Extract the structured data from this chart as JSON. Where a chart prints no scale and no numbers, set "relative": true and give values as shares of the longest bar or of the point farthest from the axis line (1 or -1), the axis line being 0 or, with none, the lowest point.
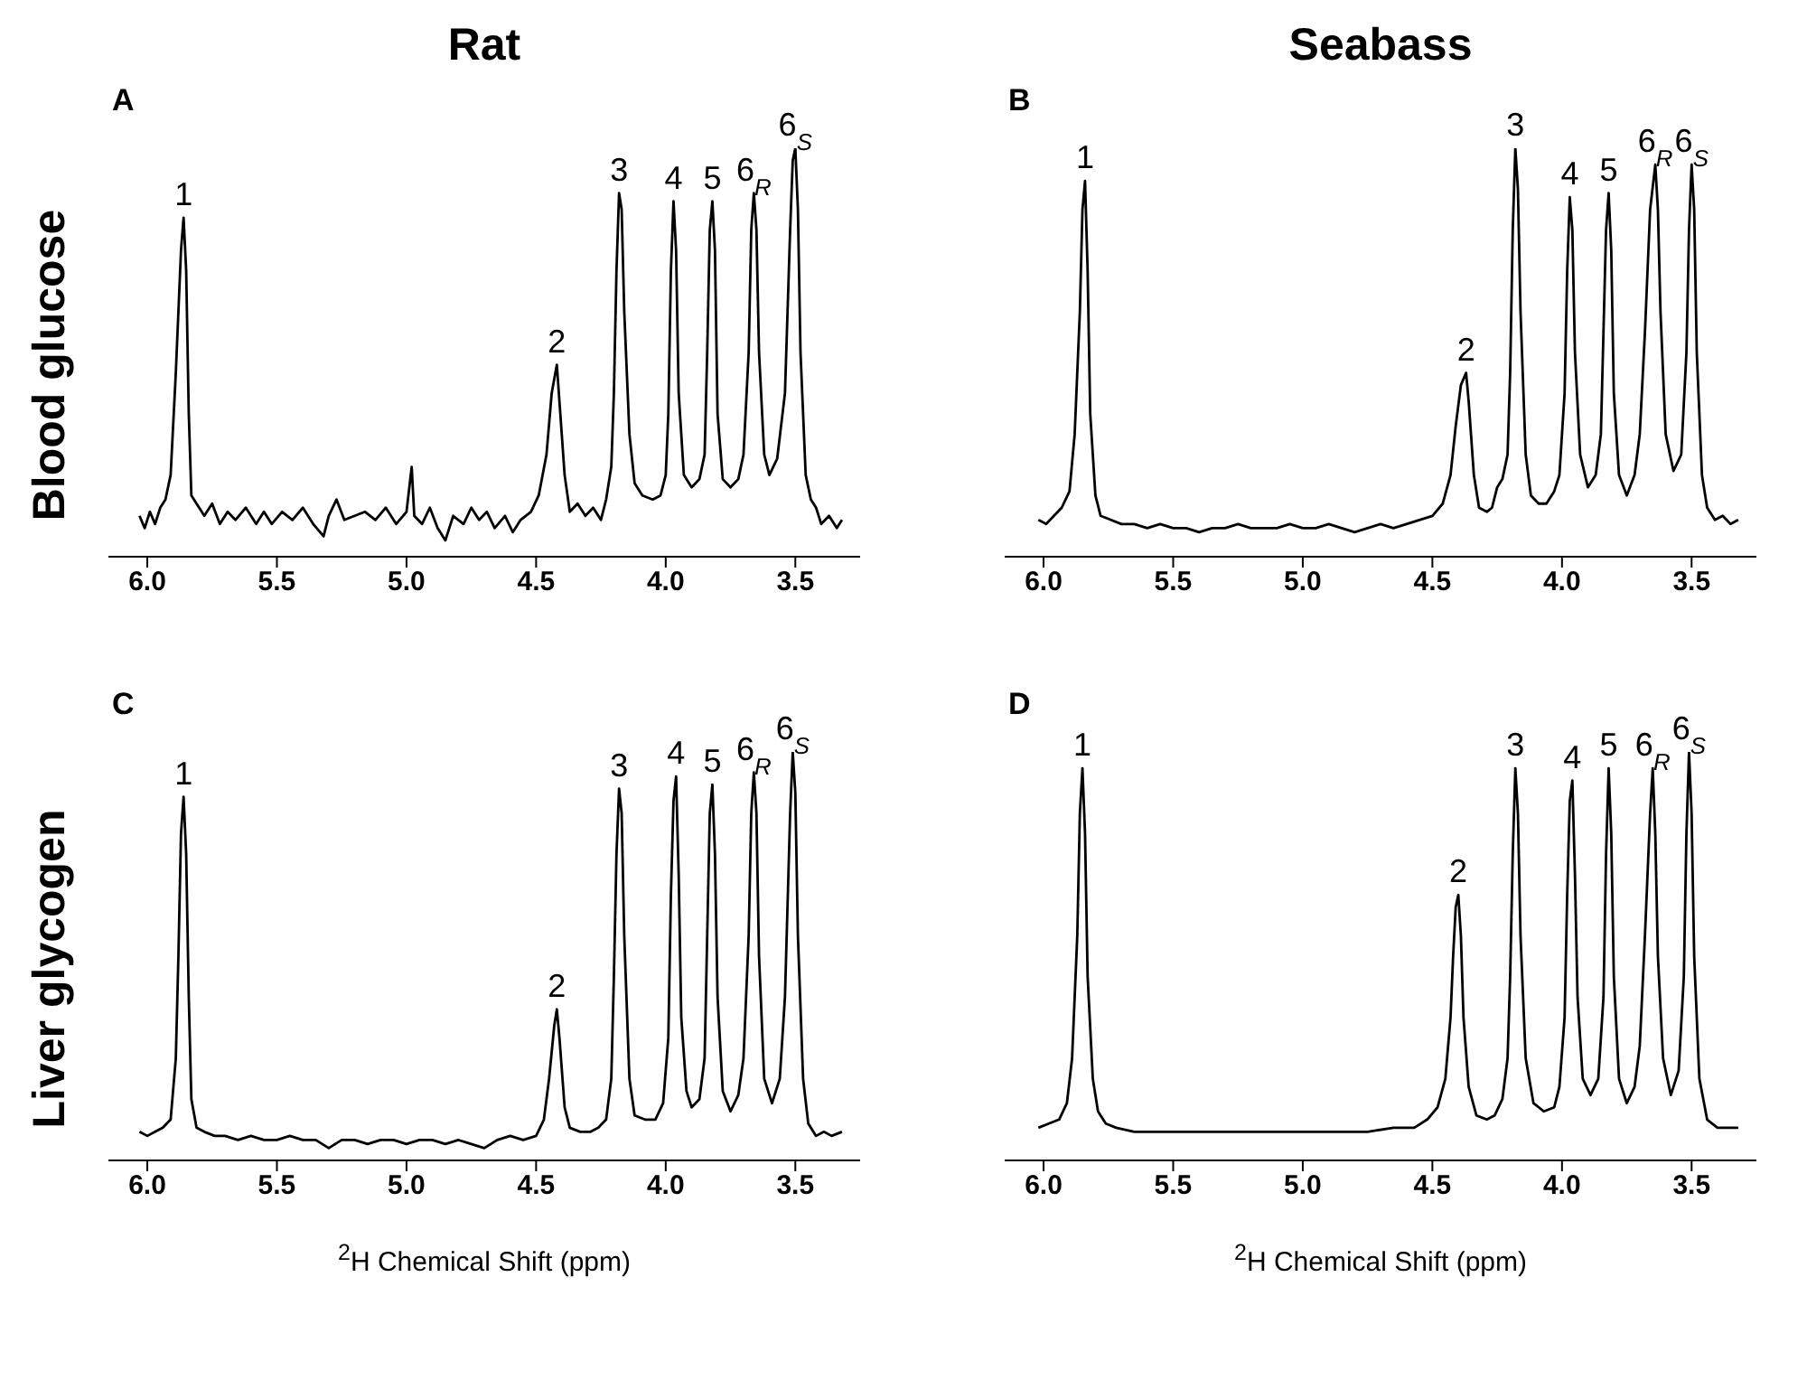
{
  "chart_data": [
    {
      "type": "line",
      "title": "Rat",
      "subtitle": "A",
      "ylabel": "Blood glucose",
      "relative": true,
      "color": "#000000",
      "xlim": [
        6.15,
        3.25
      ],
      "xticks": [
        {
          "value": 6,
          "label": "6.0"
        },
        {
          "value": 5.5,
          "label": "5.5"
        },
        {
          "value": 5,
          "label": "5.0"
        },
        {
          "value": 4.5,
          "label": "4.5"
        },
        {
          "value": 4,
          "label": "4.0"
        },
        {
          "value": 3.5,
          "label": "3.5"
        }
      ],
      "x": [
        6.03,
        6.01,
        5.99,
        5.97,
        5.95,
        5.93,
        5.91,
        5.89,
        5.87,
        5.86,
        5.85,
        5.84,
        5.83,
        5.81,
        5.78,
        5.75,
        5.72,
        5.69,
        5.66,
        5.62,
        5.58,
        5.55,
        5.52,
        5.48,
        5.44,
        5.4,
        5.36,
        5.32,
        5.3,
        5.27,
        5.24,
        5.2,
        5.16,
        5.12,
        5.08,
        5.04,
        5.0,
        4.98,
        4.97,
        4.94,
        4.91,
        4.88,
        4.85,
        4.82,
        4.78,
        4.75,
        4.72,
        4.69,
        4.66,
        4.62,
        4.59,
        4.56,
        4.52,
        4.49,
        4.46,
        4.44,
        4.42,
        4.41,
        4.39,
        4.37,
        4.34,
        4.31,
        4.28,
        4.25,
        4.23,
        4.21,
        4.2,
        4.19,
        4.18,
        4.17,
        4.16,
        4.14,
        4.12,
        4.09,
        4.05,
        4.02,
        4.0,
        3.99,
        3.98,
        3.97,
        3.96,
        3.95,
        3.93,
        3.9,
        3.87,
        3.85,
        3.84,
        3.83,
        3.82,
        3.81,
        3.8,
        3.78,
        3.75,
        3.72,
        3.7,
        3.68,
        3.67,
        3.66,
        3.65,
        3.64,
        3.62,
        3.6,
        3.57,
        3.54,
        3.52,
        3.51,
        3.5,
        3.49,
        3.48,
        3.46,
        3.44,
        3.42,
        3.4,
        3.37,
        3.34,
        3.32
      ],
      "values": [
        0.1,
        0.07,
        0.11,
        0.08,
        0.12,
        0.14,
        0.2,
        0.45,
        0.75,
        0.83,
        0.7,
        0.35,
        0.15,
        0.13,
        0.1,
        0.13,
        0.08,
        0.11,
        0.09,
        0.12,
        0.08,
        0.11,
        0.08,
        0.11,
        0.09,
        0.12,
        0.08,
        0.05,
        0.1,
        0.14,
        0.09,
        0.1,
        0.11,
        0.09,
        0.12,
        0.08,
        0.11,
        0.22,
        0.1,
        0.08,
        0.12,
        0.07,
        0.04,
        0.1,
        0.08,
        0.12,
        0.09,
        0.11,
        0.07,
        0.1,
        0.06,
        0.09,
        0.11,
        0.15,
        0.25,
        0.4,
        0.47,
        0.38,
        0.2,
        0.11,
        0.13,
        0.1,
        0.12,
        0.09,
        0.14,
        0.22,
        0.4,
        0.7,
        0.89,
        0.85,
        0.6,
        0.3,
        0.18,
        0.15,
        0.14,
        0.15,
        0.2,
        0.35,
        0.7,
        0.87,
        0.75,
        0.4,
        0.2,
        0.17,
        0.19,
        0.25,
        0.5,
        0.8,
        0.87,
        0.75,
        0.35,
        0.19,
        0.17,
        0.19,
        0.25,
        0.5,
        0.8,
        0.89,
        0.8,
        0.5,
        0.25,
        0.2,
        0.24,
        0.4,
        0.8,
        0.97,
        1.0,
        0.85,
        0.5,
        0.2,
        0.14,
        0.12,
        0.08,
        0.1,
        0.07,
        0.09
      ],
      "annotations": [
        {
          "text": "1",
          "x": 5.86,
          "y": 0.83
        },
        {
          "text": "2",
          "x": 4.42,
          "y": 0.47
        },
        {
          "text": "3",
          "x": 4.18,
          "y": 0.89
        },
        {
          "text": "4",
          "x": 3.97,
          "y": 0.87
        },
        {
          "text": "5",
          "x": 3.82,
          "y": 0.87
        },
        {
          "text": "6$_{R}$",
          "x": 3.66,
          "y": 0.89
        },
        {
          "text": "6$_{S}$",
          "x": 3.5,
          "y": 1.0
        }
      ]
    },
    {
      "type": "line",
      "title": "Seabass",
      "subtitle": "B",
      "relative": true,
      "color": "#000000",
      "xlim": [
        6.15,
        3.25
      ],
      "xticks": [
        {
          "value": 6,
          "label": "6.0"
        },
        {
          "value": 5.5,
          "label": "5.5"
        },
        {
          "value": 5,
          "label": "5.0"
        },
        {
          "value": 4.5,
          "label": "4.5"
        },
        {
          "value": 4,
          "label": "4.0"
        },
        {
          "value": 3.5,
          "label": "3.5"
        }
      ],
      "x": [
        6.02,
        5.99,
        5.96,
        5.93,
        5.9,
        5.88,
        5.86,
        5.85,
        5.84,
        5.83,
        5.82,
        5.8,
        5.78,
        5.74,
        5.7,
        5.65,
        5.6,
        5.55,
        5.5,
        5.45,
        5.4,
        5.35,
        5.3,
        5.25,
        5.2,
        5.15,
        5.1,
        5.05,
        5.0,
        4.95,
        4.9,
        4.85,
        4.8,
        4.75,
        4.7,
        4.65,
        4.6,
        4.55,
        4.5,
        4.46,
        4.43,
        4.41,
        4.39,
        4.37,
        4.36,
        4.34,
        4.32,
        4.29,
        4.27,
        4.25,
        4.23,
        4.21,
        4.2,
        4.19,
        4.18,
        4.17,
        4.16,
        4.14,
        4.12,
        4.09,
        4.06,
        4.03,
        4.01,
        3.99,
        3.98,
        3.97,
        3.96,
        3.95,
        3.93,
        3.9,
        3.87,
        3.85,
        3.84,
        3.83,
        3.82,
        3.81,
        3.8,
        3.78,
        3.75,
        3.72,
        3.7,
        3.68,
        3.66,
        3.64,
        3.63,
        3.62,
        3.6,
        3.57,
        3.54,
        3.52,
        3.51,
        3.5,
        3.49,
        3.48,
        3.46,
        3.44,
        3.41,
        3.38,
        3.35,
        3.32
      ],
      "values": [
        0.09,
        0.08,
        0.1,
        0.12,
        0.16,
        0.3,
        0.6,
        0.85,
        0.92,
        0.7,
        0.35,
        0.15,
        0.1,
        0.09,
        0.08,
        0.08,
        0.07,
        0.08,
        0.07,
        0.07,
        0.06,
        0.07,
        0.07,
        0.08,
        0.07,
        0.07,
        0.07,
        0.08,
        0.07,
        0.07,
        0.08,
        0.07,
        0.06,
        0.07,
        0.08,
        0.07,
        0.08,
        0.09,
        0.1,
        0.13,
        0.2,
        0.32,
        0.42,
        0.45,
        0.38,
        0.2,
        0.12,
        0.11,
        0.12,
        0.17,
        0.19,
        0.25,
        0.45,
        0.8,
        1.0,
        0.9,
        0.6,
        0.25,
        0.15,
        0.13,
        0.13,
        0.16,
        0.2,
        0.4,
        0.7,
        0.88,
        0.8,
        0.5,
        0.25,
        0.17,
        0.2,
        0.3,
        0.55,
        0.8,
        0.89,
        0.75,
        0.4,
        0.2,
        0.15,
        0.2,
        0.3,
        0.55,
        0.85,
        0.96,
        0.85,
        0.6,
        0.3,
        0.21,
        0.25,
        0.5,
        0.8,
        0.96,
        0.85,
        0.5,
        0.2,
        0.12,
        0.09,
        0.1,
        0.08,
        0.09
      ],
      "annotations": [
        {
          "text": "1",
          "x": 5.84,
          "y": 0.92
        },
        {
          "text": "2",
          "x": 4.37,
          "y": 0.45
        },
        {
          "text": "3",
          "x": 4.18,
          "y": 1.0
        },
        {
          "text": "4",
          "x": 3.97,
          "y": 0.88
        },
        {
          "text": "5",
          "x": 3.82,
          "y": 0.89
        },
        {
          "text": "6$_{R}$",
          "x": 3.64,
          "y": 0.96
        },
        {
          "text": "6$_{S}$",
          "x": 3.5,
          "y": 0.96
        }
      ]
    },
    {
      "type": "line",
      "subtitle": "C",
      "ylabel": "Liver glycogen",
      "xlabel": "$^{2}$H Chemical Shift (ppm)",
      "relative": true,
      "color": "#000000",
      "xlim": [
        6.15,
        3.25
      ],
      "xticks": [
        {
          "value": 6,
          "label": "6.0"
        },
        {
          "value": 5.5,
          "label": "5.5"
        },
        {
          "value": 5,
          "label": "5.0"
        },
        {
          "value": 4.5,
          "label": "4.5"
        },
        {
          "value": 4,
          "label": "4.0"
        },
        {
          "value": 3.5,
          "label": "3.5"
        }
      ],
      "x": [
        6.03,
        6.0,
        5.97,
        5.94,
        5.91,
        5.89,
        5.88,
        5.87,
        5.86,
        5.85,
        5.84,
        5.83,
        5.81,
        5.78,
        5.74,
        5.7,
        5.65,
        5.6,
        5.55,
        5.5,
        5.45,
        5.4,
        5.35,
        5.3,
        5.25,
        5.2,
        5.15,
        5.1,
        5.05,
        5.0,
        4.95,
        4.9,
        4.85,
        4.8,
        4.75,
        4.7,
        4.65,
        4.6,
        4.55,
        4.5,
        4.47,
        4.45,
        4.43,
        4.42,
        4.41,
        4.39,
        4.37,
        4.33,
        4.29,
        4.26,
        4.23,
        4.21,
        4.2,
        4.19,
        4.18,
        4.17,
        4.16,
        4.14,
        4.12,
        4.08,
        4.04,
        4.01,
        3.99,
        3.98,
        3.97,
        3.96,
        3.95,
        3.94,
        3.92,
        3.9,
        3.87,
        3.85,
        3.84,
        3.83,
        3.82,
        3.81,
        3.8,
        3.78,
        3.75,
        3.72,
        3.7,
        3.68,
        3.67,
        3.66,
        3.65,
        3.64,
        3.62,
        3.59,
        3.56,
        3.54,
        3.52,
        3.51,
        3.5,
        3.49,
        3.47,
        3.45,
        3.42,
        3.39,
        3.36,
        3.32
      ],
      "values": [
        0.07,
        0.06,
        0.07,
        0.08,
        0.1,
        0.25,
        0.5,
        0.8,
        0.89,
        0.75,
        0.4,
        0.15,
        0.08,
        0.07,
        0.06,
        0.06,
        0.05,
        0.06,
        0.05,
        0.05,
        0.06,
        0.05,
        0.05,
        0.03,
        0.05,
        0.05,
        0.04,
        0.05,
        0.05,
        0.04,
        0.05,
        0.05,
        0.04,
        0.05,
        0.04,
        0.03,
        0.05,
        0.06,
        0.05,
        0.06,
        0.1,
        0.2,
        0.33,
        0.37,
        0.3,
        0.13,
        0.08,
        0.07,
        0.07,
        0.08,
        0.1,
        0.2,
        0.45,
        0.75,
        0.91,
        0.85,
        0.55,
        0.2,
        0.11,
        0.1,
        0.1,
        0.14,
        0.3,
        0.65,
        0.88,
        0.94,
        0.7,
        0.35,
        0.17,
        0.13,
        0.15,
        0.25,
        0.55,
        0.85,
        0.92,
        0.75,
        0.4,
        0.17,
        0.12,
        0.16,
        0.25,
        0.55,
        0.85,
        0.95,
        0.85,
        0.5,
        0.2,
        0.14,
        0.2,
        0.4,
        0.85,
        1.0,
        0.9,
        0.55,
        0.2,
        0.09,
        0.06,
        0.07,
        0.06,
        0.07
      ],
      "annotations": [
        {
          "text": "1",
          "x": 5.86,
          "y": 0.89
        },
        {
          "text": "2",
          "x": 4.42,
          "y": 0.37
        },
        {
          "text": "3",
          "x": 4.18,
          "y": 0.91
        },
        {
          "text": "4",
          "x": 3.96,
          "y": 0.94
        },
        {
          "text": "5",
          "x": 3.82,
          "y": 0.92
        },
        {
          "text": "6$_{R}$",
          "x": 3.66,
          "y": 0.95
        },
        {
          "text": "6$_{S}$",
          "x": 3.51,
          "y": 1.0
        }
      ]
    },
    {
      "type": "line",
      "subtitle": "D",
      "xlabel": "$^{2}$H Chemical Shift (ppm)",
      "relative": true,
      "color": "#000000",
      "xlim": [
        6.15,
        3.25
      ],
      "xticks": [
        {
          "value": 6,
          "label": "6.0"
        },
        {
          "value": 5.5,
          "label": "5.5"
        },
        {
          "value": 5,
          "label": "5.0"
        },
        {
          "value": 4.5,
          "label": "4.5"
        },
        {
          "value": 4,
          "label": "4.0"
        },
        {
          "value": 3.5,
          "label": "3.5"
        }
      ],
      "x": [
        6.02,
        5.98,
        5.94,
        5.91,
        5.89,
        5.87,
        5.86,
        5.85,
        5.84,
        5.83,
        5.81,
        5.79,
        5.76,
        5.72,
        5.65,
        5.55,
        5.45,
        5.35,
        5.25,
        5.15,
        5.05,
        4.95,
        4.85,
        4.75,
        4.65,
        4.57,
        4.52,
        4.48,
        4.45,
        4.43,
        4.42,
        4.41,
        4.4,
        4.39,
        4.38,
        4.36,
        4.33,
        4.29,
        4.26,
        4.23,
        4.21,
        4.2,
        4.19,
        4.18,
        4.17,
        4.16,
        4.14,
        4.11,
        4.07,
        4.03,
        4.01,
        3.99,
        3.98,
        3.97,
        3.96,
        3.95,
        3.94,
        3.92,
        3.89,
        3.86,
        3.84,
        3.83,
        3.82,
        3.81,
        3.8,
        3.78,
        3.75,
        3.72,
        3.7,
        3.68,
        3.66,
        3.65,
        3.64,
        3.63,
        3.61,
        3.58,
        3.55,
        3.53,
        3.52,
        3.51,
        3.5,
        3.49,
        3.47,
        3.44,
        3.4,
        3.36,
        3.32
      ],
      "values": [
        0.08,
        0.09,
        0.1,
        0.14,
        0.25,
        0.55,
        0.85,
        0.96,
        0.8,
        0.45,
        0.2,
        0.12,
        0.09,
        0.08,
        0.07,
        0.07,
        0.07,
        0.07,
        0.07,
        0.07,
        0.07,
        0.07,
        0.07,
        0.07,
        0.08,
        0.08,
        0.1,
        0.13,
        0.2,
        0.35,
        0.5,
        0.62,
        0.65,
        0.55,
        0.35,
        0.18,
        0.11,
        0.1,
        0.11,
        0.15,
        0.25,
        0.45,
        0.75,
        0.96,
        0.85,
        0.55,
        0.25,
        0.14,
        0.12,
        0.13,
        0.18,
        0.35,
        0.65,
        0.88,
        0.93,
        0.7,
        0.4,
        0.2,
        0.16,
        0.2,
        0.4,
        0.75,
        0.96,
        0.8,
        0.45,
        0.2,
        0.14,
        0.18,
        0.28,
        0.55,
        0.85,
        0.96,
        0.8,
        0.5,
        0.25,
        0.16,
        0.22,
        0.45,
        0.8,
        1.0,
        0.85,
        0.5,
        0.2,
        0.1,
        0.08,
        0.08,
        0.08
      ],
      "annotations": [
        {
          "text": "1",
          "x": 5.85,
          "y": 0.96
        },
        {
          "text": "2",
          "x": 4.4,
          "y": 0.65
        },
        {
          "text": "3",
          "x": 4.18,
          "y": 0.96
        },
        {
          "text": "4",
          "x": 3.96,
          "y": 0.93
        },
        {
          "text": "5",
          "x": 3.82,
          "y": 0.96
        },
        {
          "text": "6$_{R}$",
          "x": 3.65,
          "y": 0.96
        },
        {
          "text": "6$_{S}$",
          "x": 3.51,
          "y": 1.0
        }
      ]
    }
  ]
}
